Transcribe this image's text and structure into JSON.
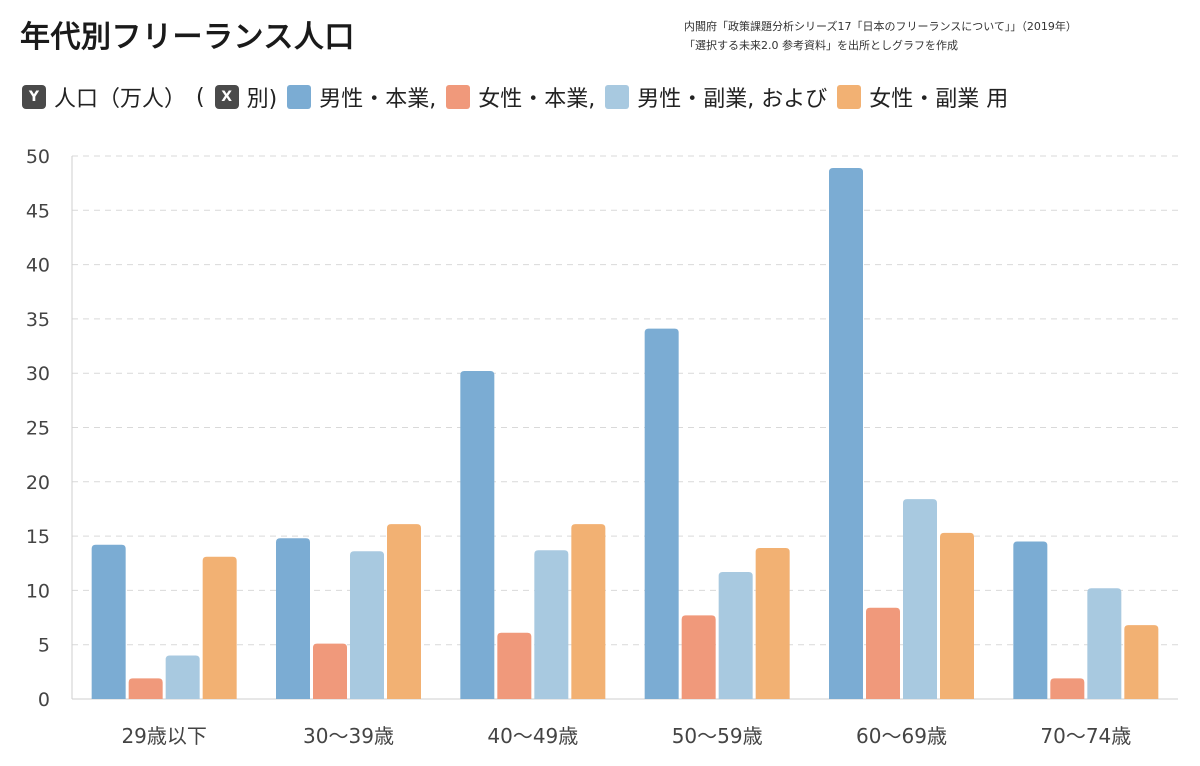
{
  "header": {
    "title": "年代別フリーランス人口",
    "source_line1": "内閣府「政策課題分析シリーズ17「日本のフリーランスについて」」（2019年）",
    "source_line2": "「選択する未来2.0 参考資料」を出所としグラフを作成"
  },
  "legend": {
    "y_key": "Y",
    "y_text": "人口（万人）",
    "open_paren": "(",
    "x_key": "X",
    "x_text": "別)",
    "items": [
      {
        "label": "男性・本業,",
        "color": "#7bacd3"
      },
      {
        "label": "女性・本業,",
        "color": "#f0997b"
      },
      {
        "label": "男性・副業, および",
        "color": "#a8c9e0"
      },
      {
        "label": "女性・副業 用",
        "color": "#f2b173"
      }
    ]
  },
  "chart_data": {
    "type": "bar",
    "title": "年代別フリーランス人口",
    "ylabel": "人口（万人）",
    "xlabel": "",
    "categories": [
      "29歳以下",
      "30〜39歳",
      "40〜49歳",
      "50〜59歳",
      "60〜69歳",
      "70〜74歳"
    ],
    "ylim": [
      0,
      50
    ],
    "yticks": [
      0,
      5,
      10,
      15,
      20,
      25,
      30,
      35,
      40,
      45,
      50
    ],
    "grid": true,
    "legend_position": "top-left",
    "series": [
      {
        "name": "男性・本業",
        "color": "#7bacd3",
        "values": [
          14.2,
          14.8,
          30.2,
          34.1,
          48.9,
          14.5
        ]
      },
      {
        "name": "女性・本業",
        "color": "#f0997b",
        "values": [
          1.9,
          5.1,
          6.1,
          7.7,
          8.4,
          1.9
        ]
      },
      {
        "name": "男性・副業",
        "color": "#a8c9e0",
        "values": [
          4.0,
          13.6,
          13.7,
          11.7,
          18.4,
          10.2
        ]
      },
      {
        "name": "女性・副業",
        "color": "#f2b173",
        "values": [
          13.1,
          16.1,
          16.1,
          13.9,
          15.3,
          6.8
        ]
      }
    ]
  }
}
